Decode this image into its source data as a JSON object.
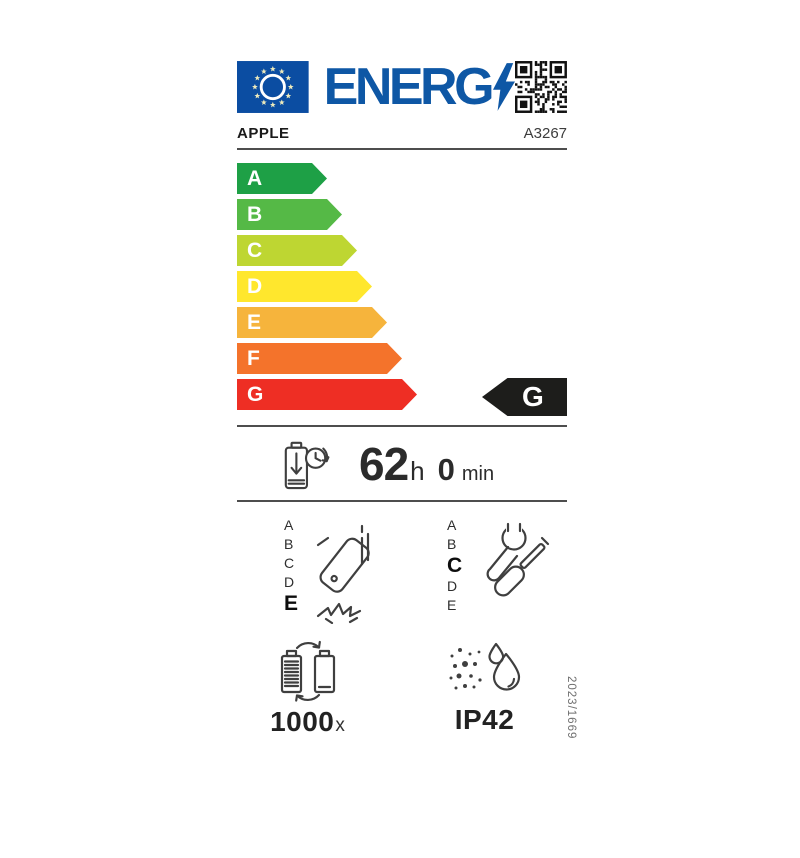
{
  "colors": {
    "eu_blue": "#0E57A5",
    "flag_blue": "#0B4DA2",
    "star_yellow": "#EDEABC",
    "arrow_black": "#1D1D1B",
    "line_gray": "#4D4D4D",
    "ink": "#2B2B2B",
    "icon_gray": "#3F3F3F"
  },
  "header": {
    "logo_text": "ENERG",
    "brand": "APPLE",
    "model": "A3267"
  },
  "icons": [
    "eu-flag-icon",
    "lightning-bolt-icon",
    "qr-code-icon",
    "battery-discharge-clock-icon",
    "phone-drop-icon",
    "repair-tools-icon",
    "battery-cycle-icon",
    "dust-water-ingress-icon"
  ],
  "energy_scale": {
    "rating": "G",
    "grades": [
      {
        "letter": "A",
        "color": "#1EA046",
        "width": 90
      },
      {
        "letter": "B",
        "color": "#55B946",
        "width": 105
      },
      {
        "letter": "C",
        "color": "#BED632",
        "width": 120
      },
      {
        "letter": "D",
        "color": "#FFE72D",
        "width": 135
      },
      {
        "letter": "E",
        "color": "#F6B43C",
        "width": 150
      },
      {
        "letter": "F",
        "color": "#F4732B",
        "width": 165
      },
      {
        "letter": "G",
        "color": "#EE2E24",
        "width": 180
      }
    ]
  },
  "battery_life": {
    "hours": "62",
    "hours_unit": "h",
    "minutes": "0",
    "minutes_unit": "min"
  },
  "drop_resistance": {
    "scale": [
      "A",
      "B",
      "C",
      "D",
      "E"
    ],
    "rating": "E"
  },
  "repairability": {
    "scale": [
      "A",
      "B",
      "C",
      "D",
      "E"
    ],
    "rating": "C"
  },
  "battery_cycles": {
    "value": "1000",
    "unit": "x"
  },
  "ingress_protection": {
    "value": "IP42"
  },
  "regulation": "2023/1669"
}
